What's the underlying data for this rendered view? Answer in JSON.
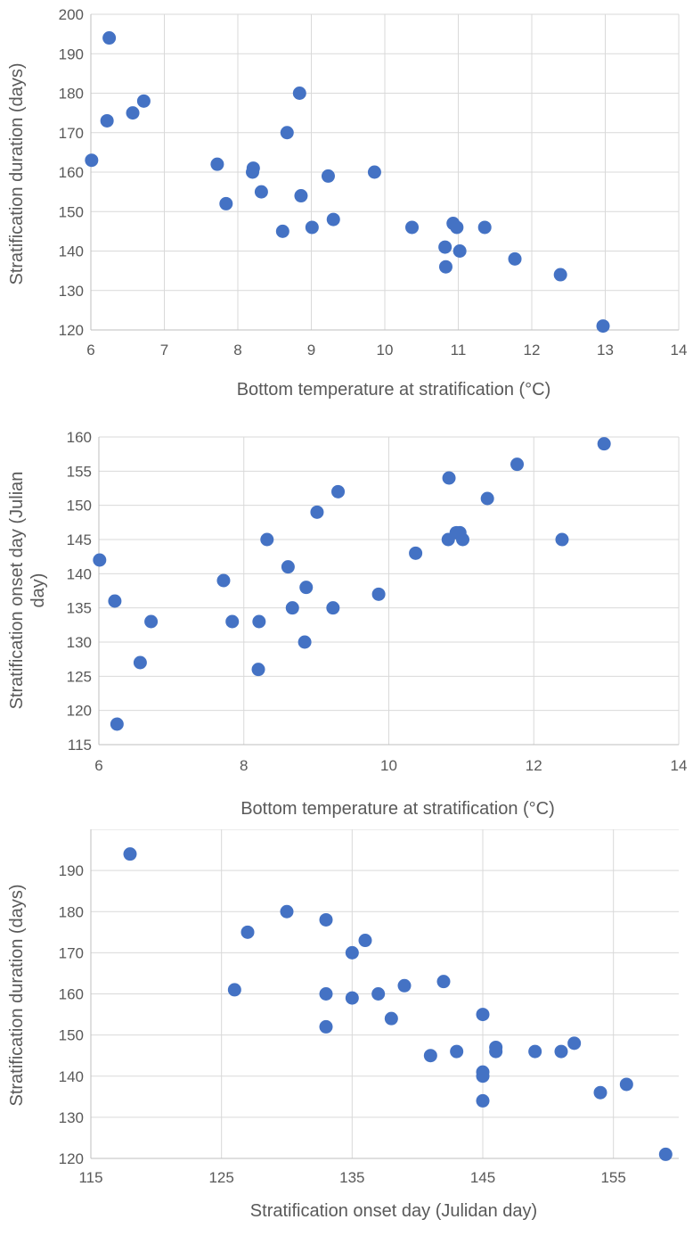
{
  "chart_data": [
    {
      "type": "scatter",
      "title": "",
      "xlabel": "Bottom temperature at stratification (°C)",
      "ylabel": "Stratification duration (days)",
      "xlim": [
        6,
        14
      ],
      "ylim": [
        120,
        200
      ],
      "xticks": [
        6,
        7,
        8,
        9,
        10,
        11,
        12,
        13,
        14
      ],
      "yticks": [
        120,
        130,
        140,
        150,
        160,
        170,
        180,
        190,
        200
      ],
      "grid": true,
      "color": "#4472c4",
      "x": [
        6.25,
        6.22,
        6.01,
        6.57,
        6.72,
        7.72,
        7.84,
        8.2,
        8.21,
        8.32,
        8.61,
        8.67,
        8.84,
        8.86,
        9.01,
        9.23,
        9.3,
        9.86,
        10.37,
        10.82,
        10.83,
        10.93,
        10.98,
        11.02,
        11.36,
        11.77,
        12.39,
        12.97
      ],
      "y": [
        194,
        173,
        163,
        175,
        178,
        162,
        152,
        160,
        161,
        155,
        145,
        170,
        180,
        154,
        146,
        159,
        148,
        160,
        146,
        141,
        136,
        147,
        146,
        140,
        146,
        138,
        134,
        121
      ]
    },
    {
      "type": "scatter",
      "title": "",
      "xlabel": "Bottom temperature at stratification (°C)",
      "ylabel": "Stratification  onset day (Julian day)",
      "ylabel_lines": [
        "Stratification  onset day (Julian",
        "day)"
      ],
      "xlim": [
        6,
        14
      ],
      "ylim": [
        115,
        160
      ],
      "xticks": [
        6,
        8,
        10,
        12,
        14
      ],
      "yticks": [
        115,
        120,
        125,
        130,
        135,
        140,
        145,
        150,
        155,
        160
      ],
      "grid": true,
      "color": "#4472c4",
      "x": [
        6.01,
        6.22,
        6.25,
        6.57,
        6.72,
        7.72,
        7.84,
        8.2,
        8.21,
        8.32,
        8.61,
        8.67,
        8.84,
        8.86,
        9.01,
        9.23,
        9.3,
        9.86,
        10.37,
        10.82,
        10.83,
        10.93,
        10.98,
        11.02,
        11.36,
        11.77,
        12.39,
        12.97
      ],
      "y": [
        142,
        136,
        118,
        127,
        133,
        139,
        133,
        126,
        133,
        145,
        141,
        135,
        130,
        138,
        149,
        135,
        152,
        137,
        143,
        145,
        154,
        146,
        146,
        145,
        151,
        156,
        145,
        159
      ]
    },
    {
      "type": "scatter",
      "title": "",
      "xlabel": "Stratification onset day (Julidan day)",
      "ylabel": "Stratification duration (days)",
      "xlim": [
        115,
        160
      ],
      "ylim": [
        120,
        200
      ],
      "xticks": [
        115,
        125,
        135,
        145,
        155
      ],
      "yticks": [
        120,
        130,
        140,
        150,
        160,
        170,
        180,
        190,
        200
      ],
      "grid": true,
      "color": "#4472c4",
      "x": [
        118,
        126,
        127,
        130,
        133,
        133,
        133,
        135,
        135,
        136,
        137,
        138,
        139,
        141,
        142,
        143,
        145,
        145,
        145,
        145,
        146,
        146,
        149,
        151,
        152,
        154,
        156,
        159
      ],
      "y": [
        194,
        161,
        175,
        180,
        178,
        160,
        152,
        170,
        159,
        173,
        160,
        154,
        162,
        145,
        163,
        146,
        155,
        141,
        140,
        134,
        147,
        146,
        146,
        146,
        148,
        136,
        138,
        121
      ]
    }
  ]
}
